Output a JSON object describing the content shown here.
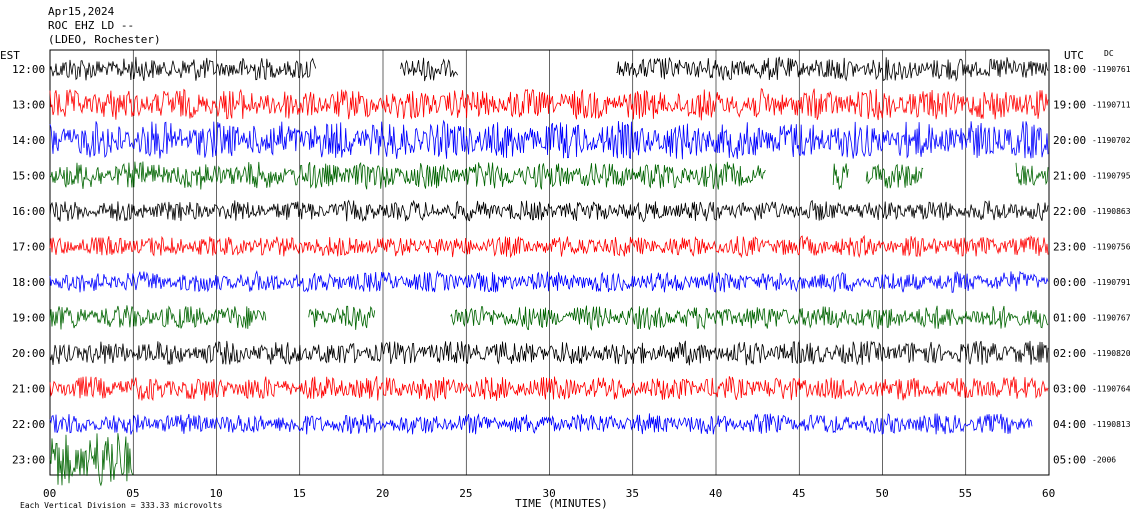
{
  "header": {
    "date": "Apr15,2024",
    "station": "ROC EHZ LD --",
    "network": "(LDEO, Rochester)"
  },
  "left_axis_label": "EST",
  "right_axis_label": "UTC",
  "dc_label": "DC",
  "footer": {
    "scale_note": "Each Vertical Division = 333.33 microvolts",
    "xlabel": "TIME (MINUTES)"
  },
  "colors": {
    "black": "#000000",
    "red": "#ff0000",
    "blue": "#0000ff",
    "green": "#006400"
  },
  "chart_data": {
    "type": "line",
    "title": "Apr15,2024 ROC EHZ LD -- (LDEO, Rochester)",
    "xlabel": "TIME (MINUTES)",
    "xlim": [
      0,
      60
    ],
    "x_ticks": [
      "00",
      "05",
      "10",
      "15",
      "20",
      "25",
      "30",
      "35",
      "40",
      "45",
      "50",
      "55",
      "60"
    ],
    "rows": [
      {
        "est": "12:00",
        "utc": "18:00",
        "dc": "-1190761",
        "color": "black",
        "amplitude": 0.35,
        "gaps": [
          [
            16,
            21
          ],
          [
            24.5,
            34
          ]
        ],
        "end": 60
      },
      {
        "est": "13:00",
        "utc": "19:00",
        "dc": "-1190711",
        "color": "red",
        "amplitude": 0.45,
        "gaps": [],
        "end": 60
      },
      {
        "est": "14:00",
        "utc": "20:00",
        "dc": "-1190702",
        "color": "blue",
        "amplitude": 0.55,
        "gaps": [],
        "end": 60
      },
      {
        "est": "15:00",
        "utc": "21:00",
        "dc": "-1190795",
        "color": "green",
        "amplitude": 0.4,
        "gaps": [
          [
            43,
            47
          ],
          [
            48,
            49
          ],
          [
            52.5,
            58
          ]
        ],
        "end": 60
      },
      {
        "est": "16:00",
        "utc": "22:00",
        "dc": "-1190863",
        "color": "black",
        "amplitude": 0.3,
        "gaps": [],
        "end": 60
      },
      {
        "est": "17:00",
        "utc": "23:00",
        "dc": "-1190756",
        "color": "red",
        "amplitude": 0.3,
        "gaps": [],
        "end": 60
      },
      {
        "est": "18:00",
        "utc": "00:00",
        "dc": "-1190791",
        "color": "blue",
        "amplitude": 0.3,
        "gaps": [],
        "end": 60
      },
      {
        "est": "19:00",
        "utc": "01:00",
        "dc": "-1190767",
        "color": "green",
        "amplitude": 0.35,
        "gaps": [
          [
            13,
            15.5
          ],
          [
            19.5,
            24
          ]
        ],
        "end": 60
      },
      {
        "est": "20:00",
        "utc": "02:00",
        "dc": "-1190820",
        "color": "black",
        "amplitude": 0.35,
        "gaps": [],
        "end": 60
      },
      {
        "est": "21:00",
        "utc": "03:00",
        "dc": "-1190764",
        "color": "red",
        "amplitude": 0.35,
        "gaps": [],
        "end": 60
      },
      {
        "est": "22:00",
        "utc": "04:00",
        "dc": "-1190813",
        "color": "blue",
        "amplitude": 0.3,
        "gaps": [],
        "end": 59
      },
      {
        "est": "23:00",
        "utc": "05:00",
        "dc": "-2006",
        "color": "green",
        "amplitude": 0.9,
        "gaps": [],
        "end": 5
      }
    ]
  }
}
